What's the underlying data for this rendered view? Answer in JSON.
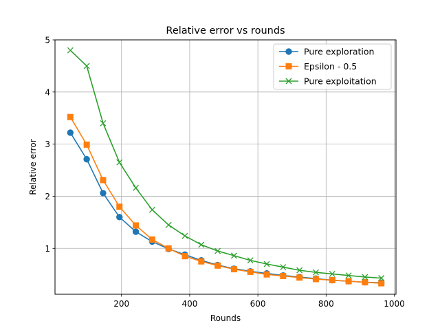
{
  "chart_data": {
    "type": "line",
    "title": "Relative error vs rounds",
    "xlabel": "Rounds",
    "ylabel": "Relative error",
    "xlim": [
      5,
      1005
    ],
    "ylim": [
      0.12,
      5.0
    ],
    "xticks": [
      200,
      400,
      600,
      800,
      1000
    ],
    "yticks": [
      1,
      2,
      3,
      4,
      5
    ],
    "grid": true,
    "legend_position": "top-right",
    "x": [
      50,
      98,
      146,
      194,
      242,
      290,
      338,
      386,
      434,
      482,
      530,
      578,
      626,
      674,
      722,
      770,
      818,
      866,
      914,
      962
    ],
    "series": [
      {
        "name": "Pure exploration",
        "color": "#1f77b4",
        "marker": "circle",
        "values": [
          3.22,
          2.71,
          2.06,
          1.6,
          1.32,
          1.13,
          0.99,
          0.88,
          0.77,
          0.68,
          0.61,
          0.56,
          0.52,
          0.48,
          0.45,
          0.42,
          0.39,
          0.37,
          0.35,
          0.34
        ]
      },
      {
        "name": "Epsilon - 0.5",
        "color": "#ff7f0e",
        "marker": "square",
        "values": [
          3.52,
          2.99,
          2.31,
          1.8,
          1.44,
          1.17,
          1.0,
          0.85,
          0.75,
          0.67,
          0.6,
          0.55,
          0.5,
          0.47,
          0.44,
          0.41,
          0.39,
          0.37,
          0.35,
          0.33
        ]
      },
      {
        "name": "Pure exploitation",
        "color": "#2ca02c",
        "marker": "x",
        "values": [
          4.8,
          4.5,
          3.4,
          2.65,
          2.16,
          1.74,
          1.45,
          1.24,
          1.07,
          0.95,
          0.86,
          0.77,
          0.7,
          0.64,
          0.58,
          0.54,
          0.51,
          0.48,
          0.45,
          0.43
        ]
      }
    ]
  }
}
